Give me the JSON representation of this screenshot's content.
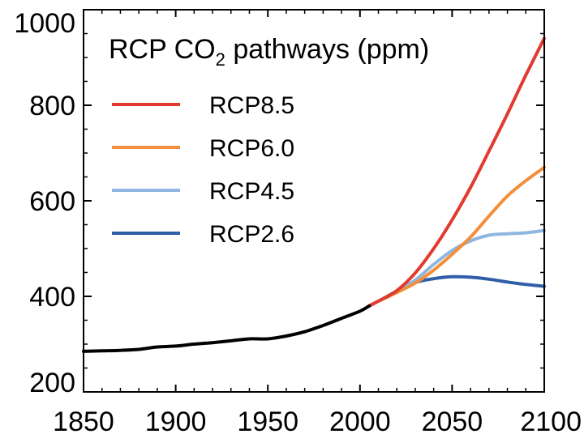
{
  "chart_data": {
    "type": "line",
    "title": {
      "prefix": "RCP CO",
      "subscript": "2",
      "suffix": " pathways (ppm)"
    },
    "xlabel": "",
    "ylabel": "",
    "xlim": [
      1850,
      2100
    ],
    "ylim": [
      200,
      1000
    ],
    "x_ticks": [
      1850,
      1900,
      1950,
      2000,
      2050,
      2100
    ],
    "y_ticks": [
      200,
      400,
      600,
      800,
      1000
    ],
    "grid": false,
    "legend_position": "top-left",
    "historical": {
      "color": "#000000",
      "points": [
        [
          1850,
          285
        ],
        [
          1860,
          286
        ],
        [
          1870,
          287
        ],
        [
          1880,
          289
        ],
        [
          1890,
          294
        ],
        [
          1900,
          296
        ],
        [
          1910,
          300
        ],
        [
          1920,
          303
        ],
        [
          1930,
          307
        ],
        [
          1940,
          311
        ],
        [
          1950,
          311
        ],
        [
          1960,
          317
        ],
        [
          1970,
          326
        ],
        [
          1980,
          339
        ],
        [
          1990,
          354
        ],
        [
          2000,
          369
        ],
        [
          2005,
          380
        ]
      ]
    },
    "series": [
      {
        "name": "RCP8.5",
        "color": "#e23a2e",
        "points": [
          [
            2005,
            380
          ],
          [
            2010,
            390
          ],
          [
            2020,
            412
          ],
          [
            2030,
            449
          ],
          [
            2040,
            500
          ],
          [
            2050,
            560
          ],
          [
            2060,
            628
          ],
          [
            2070,
            704
          ],
          [
            2080,
            782
          ],
          [
            2090,
            863
          ],
          [
            2100,
            940
          ]
        ]
      },
      {
        "name": "RCP6.0",
        "color": "#f28f3b",
        "points": [
          [
            2005,
            380
          ],
          [
            2010,
            390
          ],
          [
            2020,
            408
          ],
          [
            2030,
            428
          ],
          [
            2040,
            455
          ],
          [
            2050,
            488
          ],
          [
            2060,
            524
          ],
          [
            2070,
            568
          ],
          [
            2080,
            610
          ],
          [
            2090,
            642
          ],
          [
            2100,
            670
          ]
        ]
      },
      {
        "name": "RCP4.5",
        "color": "#8eb6e0",
        "points": [
          [
            2005,
            380
          ],
          [
            2010,
            390
          ],
          [
            2020,
            411
          ],
          [
            2030,
            434
          ],
          [
            2040,
            467
          ],
          [
            2050,
            496
          ],
          [
            2060,
            516
          ],
          [
            2070,
            528
          ],
          [
            2080,
            531
          ],
          [
            2090,
            533
          ],
          [
            2100,
            538
          ]
        ]
      },
      {
        "name": "RCP2.6",
        "color": "#2f5da8",
        "points": [
          [
            2005,
            380
          ],
          [
            2010,
            390
          ],
          [
            2020,
            411
          ],
          [
            2030,
            429
          ],
          [
            2040,
            437
          ],
          [
            2050,
            441
          ],
          [
            2060,
            440
          ],
          [
            2070,
            436
          ],
          [
            2080,
            430
          ],
          [
            2090,
            425
          ],
          [
            2100,
            421
          ]
        ]
      }
    ]
  }
}
